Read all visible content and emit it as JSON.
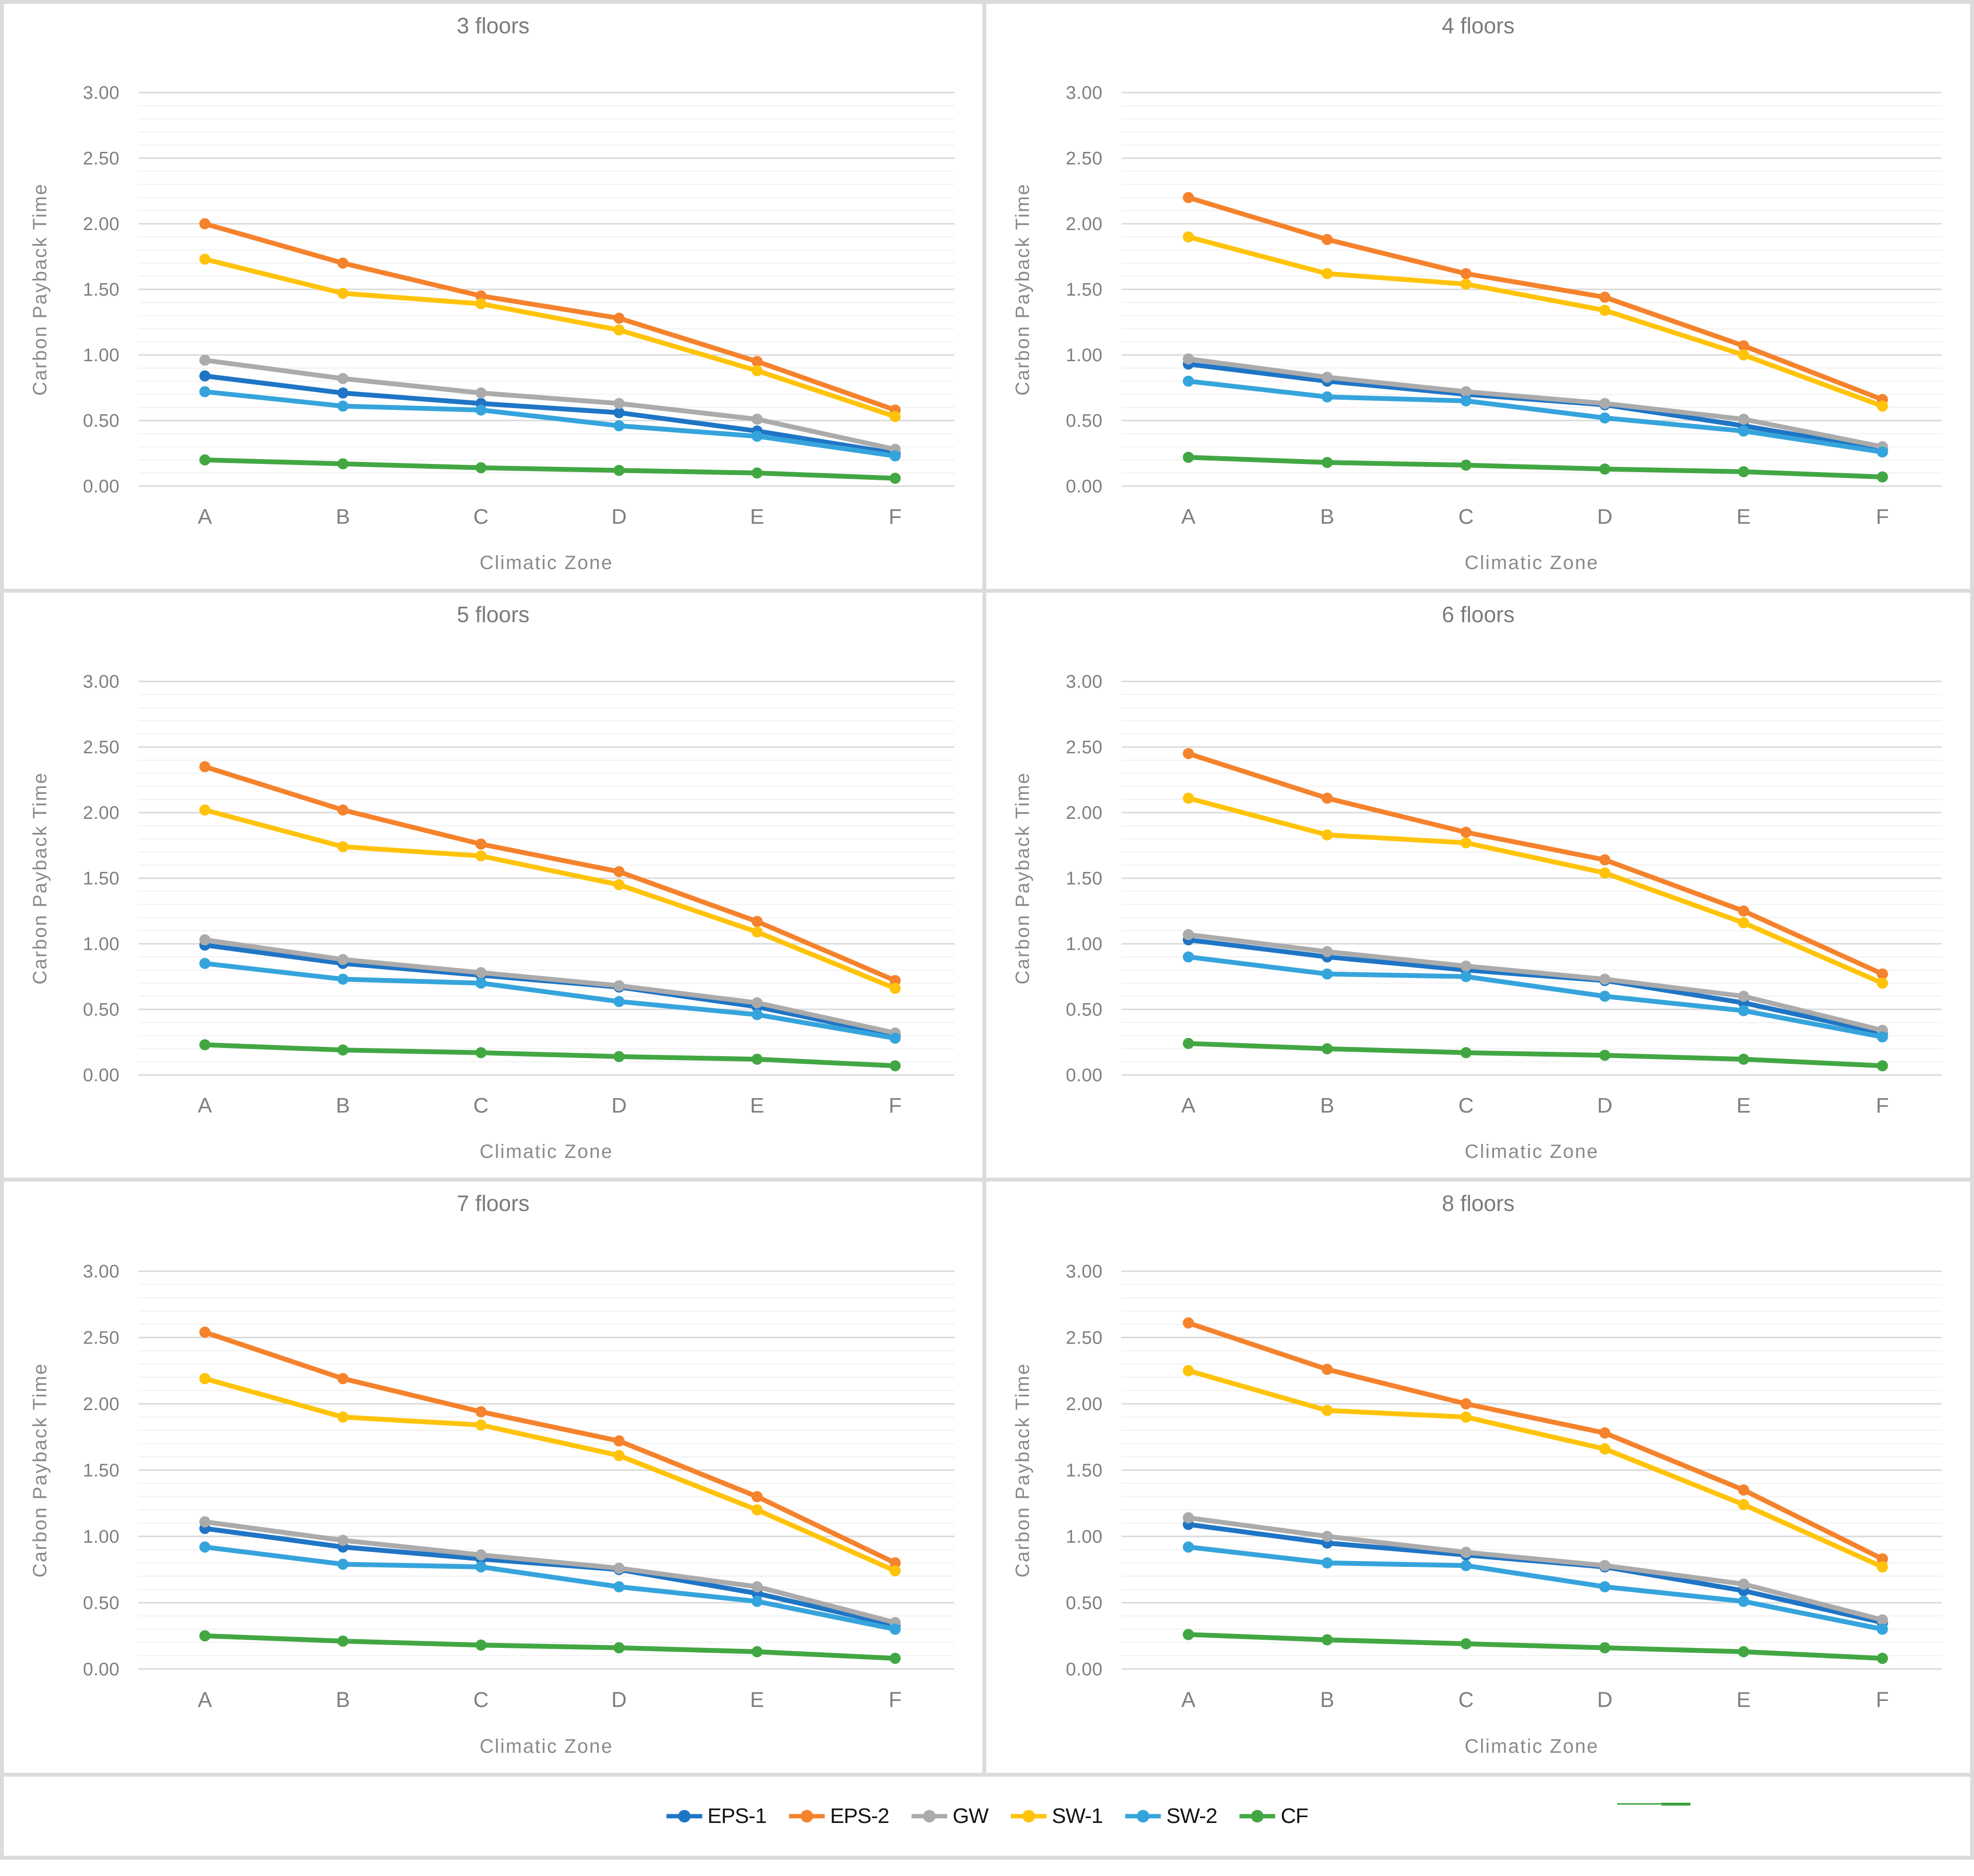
{
  "axis_defaults": {
    "xlabel": "Climatic Zone",
    "ylabel": "Carbon Payback Time",
    "categories": [
      "A",
      "B",
      "C",
      "D",
      "E",
      "F"
    ],
    "ylim": [
      0,
      3
    ],
    "y_major": 0.5,
    "y_minor": 0.1,
    "grid": "horizontal major+minor, no axis lines",
    "y_ticks": [
      {
        "value": 0,
        "label": "0.00"
      },
      {
        "value": 0.5,
        "label": "0.50"
      },
      {
        "value": 1,
        "label": "1.00"
      },
      {
        "value": 1.5,
        "label": "1.50"
      },
      {
        "value": 2,
        "label": "2.00"
      },
      {
        "value": 2.5,
        "label": "2.50"
      },
      {
        "value": 3,
        "label": "3.00"
      }
    ]
  },
  "series_colors": {
    "EPS-1": "#1f75c5",
    "EPS-2": "#f5822c",
    "GW": "#ababab",
    "SW-1": "#ffc30a",
    "SW-2": "#36a4dc",
    "CF": "#42a743"
  },
  "legend": {
    "position": "bottom-center",
    "items": [
      {
        "label": "EPS-1",
        "color": "#1f75c5"
      },
      {
        "label": "EPS-2",
        "color": "#f5822c"
      },
      {
        "label": "GW",
        "color": "#ababab"
      },
      {
        "label": "SW-1",
        "color": "#ffc30a"
      },
      {
        "label": "SW-2",
        "color": "#36a4dc"
      },
      {
        "label": "CF",
        "color": "#42a743"
      }
    ]
  },
  "chart_data": [
    {
      "type": "line",
      "title": "3 floors",
      "xlabel": "Climatic Zone",
      "ylabel": "Carbon Payback Time",
      "categories": [
        "A",
        "B",
        "C",
        "D",
        "E",
        "F"
      ],
      "ylim": [
        0,
        3
      ],
      "series": [
        {
          "name": "EPS-1",
          "values": [
            0.84,
            0.71,
            0.63,
            0.56,
            0.42,
            0.25
          ]
        },
        {
          "name": "EPS-2",
          "values": [
            2.0,
            1.7,
            1.45,
            1.28,
            0.95,
            0.58
          ]
        },
        {
          "name": "GW",
          "values": [
            0.96,
            0.82,
            0.71,
            0.63,
            0.51,
            0.28
          ]
        },
        {
          "name": "SW-1",
          "values": [
            1.73,
            1.47,
            1.39,
            1.19,
            0.88,
            0.53
          ]
        },
        {
          "name": "SW-2",
          "values": [
            0.72,
            0.61,
            0.58,
            0.46,
            0.38,
            0.23
          ]
        },
        {
          "name": "CF",
          "values": [
            0.2,
            0.17,
            0.14,
            0.12,
            0.1,
            0.06
          ]
        }
      ]
    },
    {
      "type": "line",
      "title": "4 floors",
      "xlabel": "Climatic Zone",
      "ylabel": "Carbon Payback Time",
      "categories": [
        "A",
        "B",
        "C",
        "D",
        "E",
        "F"
      ],
      "ylim": [
        0,
        3
      ],
      "series": [
        {
          "name": "EPS-1",
          "values": [
            0.93,
            0.8,
            0.7,
            0.62,
            0.46,
            0.28
          ]
        },
        {
          "name": "EPS-2",
          "values": [
            2.2,
            1.88,
            1.62,
            1.44,
            1.07,
            0.66
          ]
        },
        {
          "name": "GW",
          "values": [
            0.97,
            0.83,
            0.72,
            0.63,
            0.51,
            0.3
          ]
        },
        {
          "name": "SW-1",
          "values": [
            1.9,
            1.62,
            1.54,
            1.34,
            1.0,
            0.61
          ]
        },
        {
          "name": "SW-2",
          "values": [
            0.8,
            0.68,
            0.65,
            0.52,
            0.42,
            0.26
          ]
        },
        {
          "name": "CF",
          "values": [
            0.22,
            0.18,
            0.16,
            0.13,
            0.11,
            0.07
          ]
        }
      ]
    },
    {
      "type": "line",
      "title": "5 floors",
      "xlabel": "Climatic Zone",
      "ylabel": "Carbon Payback Time",
      "categories": [
        "A",
        "B",
        "C",
        "D",
        "E",
        "F"
      ],
      "ylim": [
        0,
        3
      ],
      "series": [
        {
          "name": "EPS-1",
          "values": [
            0.99,
            0.85,
            0.76,
            0.67,
            0.52,
            0.3
          ]
        },
        {
          "name": "EPS-2",
          "values": [
            2.35,
            2.02,
            1.76,
            1.55,
            1.17,
            0.72
          ]
        },
        {
          "name": "GW",
          "values": [
            1.03,
            0.88,
            0.78,
            0.68,
            0.55,
            0.32
          ]
        },
        {
          "name": "SW-1",
          "values": [
            2.02,
            1.74,
            1.67,
            1.45,
            1.09,
            0.66
          ]
        },
        {
          "name": "SW-2",
          "values": [
            0.85,
            0.73,
            0.7,
            0.56,
            0.46,
            0.28
          ]
        },
        {
          "name": "CF",
          "values": [
            0.23,
            0.19,
            0.17,
            0.14,
            0.12,
            0.07
          ]
        }
      ]
    },
    {
      "type": "line",
      "title": "6 floors",
      "xlabel": "Climatic Zone",
      "ylabel": "Carbon Payback Time",
      "categories": [
        "A",
        "B",
        "C",
        "D",
        "E",
        "F"
      ],
      "ylim": [
        0,
        3
      ],
      "series": [
        {
          "name": "EPS-1",
          "values": [
            1.03,
            0.9,
            0.8,
            0.72,
            0.55,
            0.32
          ]
        },
        {
          "name": "EPS-2",
          "values": [
            2.45,
            2.11,
            1.85,
            1.64,
            1.25,
            0.77
          ]
        },
        {
          "name": "GW",
          "values": [
            1.07,
            0.94,
            0.83,
            0.73,
            0.6,
            0.34
          ]
        },
        {
          "name": "SW-1",
          "values": [
            2.11,
            1.83,
            1.77,
            1.54,
            1.16,
            0.7
          ]
        },
        {
          "name": "SW-2",
          "values": [
            0.9,
            0.77,
            0.75,
            0.6,
            0.49,
            0.29
          ]
        },
        {
          "name": "CF",
          "values": [
            0.24,
            0.2,
            0.17,
            0.15,
            0.12,
            0.07
          ]
        }
      ]
    },
    {
      "type": "line",
      "title": "7 floors",
      "xlabel": "Climatic Zone",
      "ylabel": "Carbon Payback Time",
      "categories": [
        "A",
        "B",
        "C",
        "D",
        "E",
        "F"
      ],
      "ylim": [
        0,
        3
      ],
      "series": [
        {
          "name": "EPS-1",
          "values": [
            1.06,
            0.92,
            0.83,
            0.75,
            0.57,
            0.33
          ]
        },
        {
          "name": "EPS-2",
          "values": [
            2.54,
            2.19,
            1.94,
            1.72,
            1.3,
            0.8
          ]
        },
        {
          "name": "GW",
          "values": [
            1.11,
            0.97,
            0.86,
            0.76,
            0.62,
            0.35
          ]
        },
        {
          "name": "SW-1",
          "values": [
            2.19,
            1.9,
            1.84,
            1.61,
            1.2,
            0.74
          ]
        },
        {
          "name": "SW-2",
          "values": [
            0.92,
            0.79,
            0.77,
            0.62,
            0.51,
            0.3
          ]
        },
        {
          "name": "CF",
          "values": [
            0.25,
            0.21,
            0.18,
            0.16,
            0.13,
            0.08
          ]
        }
      ]
    },
    {
      "type": "line",
      "title": "8 floors",
      "xlabel": "Climatic Zone",
      "ylabel": "Carbon Payback Time",
      "categories": [
        "A",
        "B",
        "C",
        "D",
        "E",
        "F"
      ],
      "ylim": [
        0,
        3
      ],
      "series": [
        {
          "name": "EPS-1",
          "values": [
            1.09,
            0.95,
            0.86,
            0.77,
            0.59,
            0.35
          ]
        },
        {
          "name": "EPS-2",
          "values": [
            2.61,
            2.26,
            2.0,
            1.78,
            1.35,
            0.83
          ]
        },
        {
          "name": "GW",
          "values": [
            1.14,
            1.0,
            0.88,
            0.78,
            0.64,
            0.37
          ]
        },
        {
          "name": "SW-1",
          "values": [
            2.25,
            1.95,
            1.9,
            1.66,
            1.24,
            0.77
          ]
        },
        {
          "name": "SW-2",
          "values": [
            0.92,
            0.8,
            0.78,
            0.62,
            0.51,
            0.3
          ]
        },
        {
          "name": "CF",
          "values": [
            0.26,
            0.22,
            0.19,
            0.16,
            0.13,
            0.08
          ]
        }
      ]
    }
  ],
  "style": {
    "grid_major_color": "#d9d9d9",
    "grid_minor_color": "#f0f0f0",
    "tick_color": "#7f7f7f",
    "axis_title_color": "#8a8a8a",
    "panel_title_color": "#7b7b7b",
    "frame_color": "#dbdbdb",
    "legend_text_color": "#141414",
    "stray_green_line_color": "#42a743"
  }
}
